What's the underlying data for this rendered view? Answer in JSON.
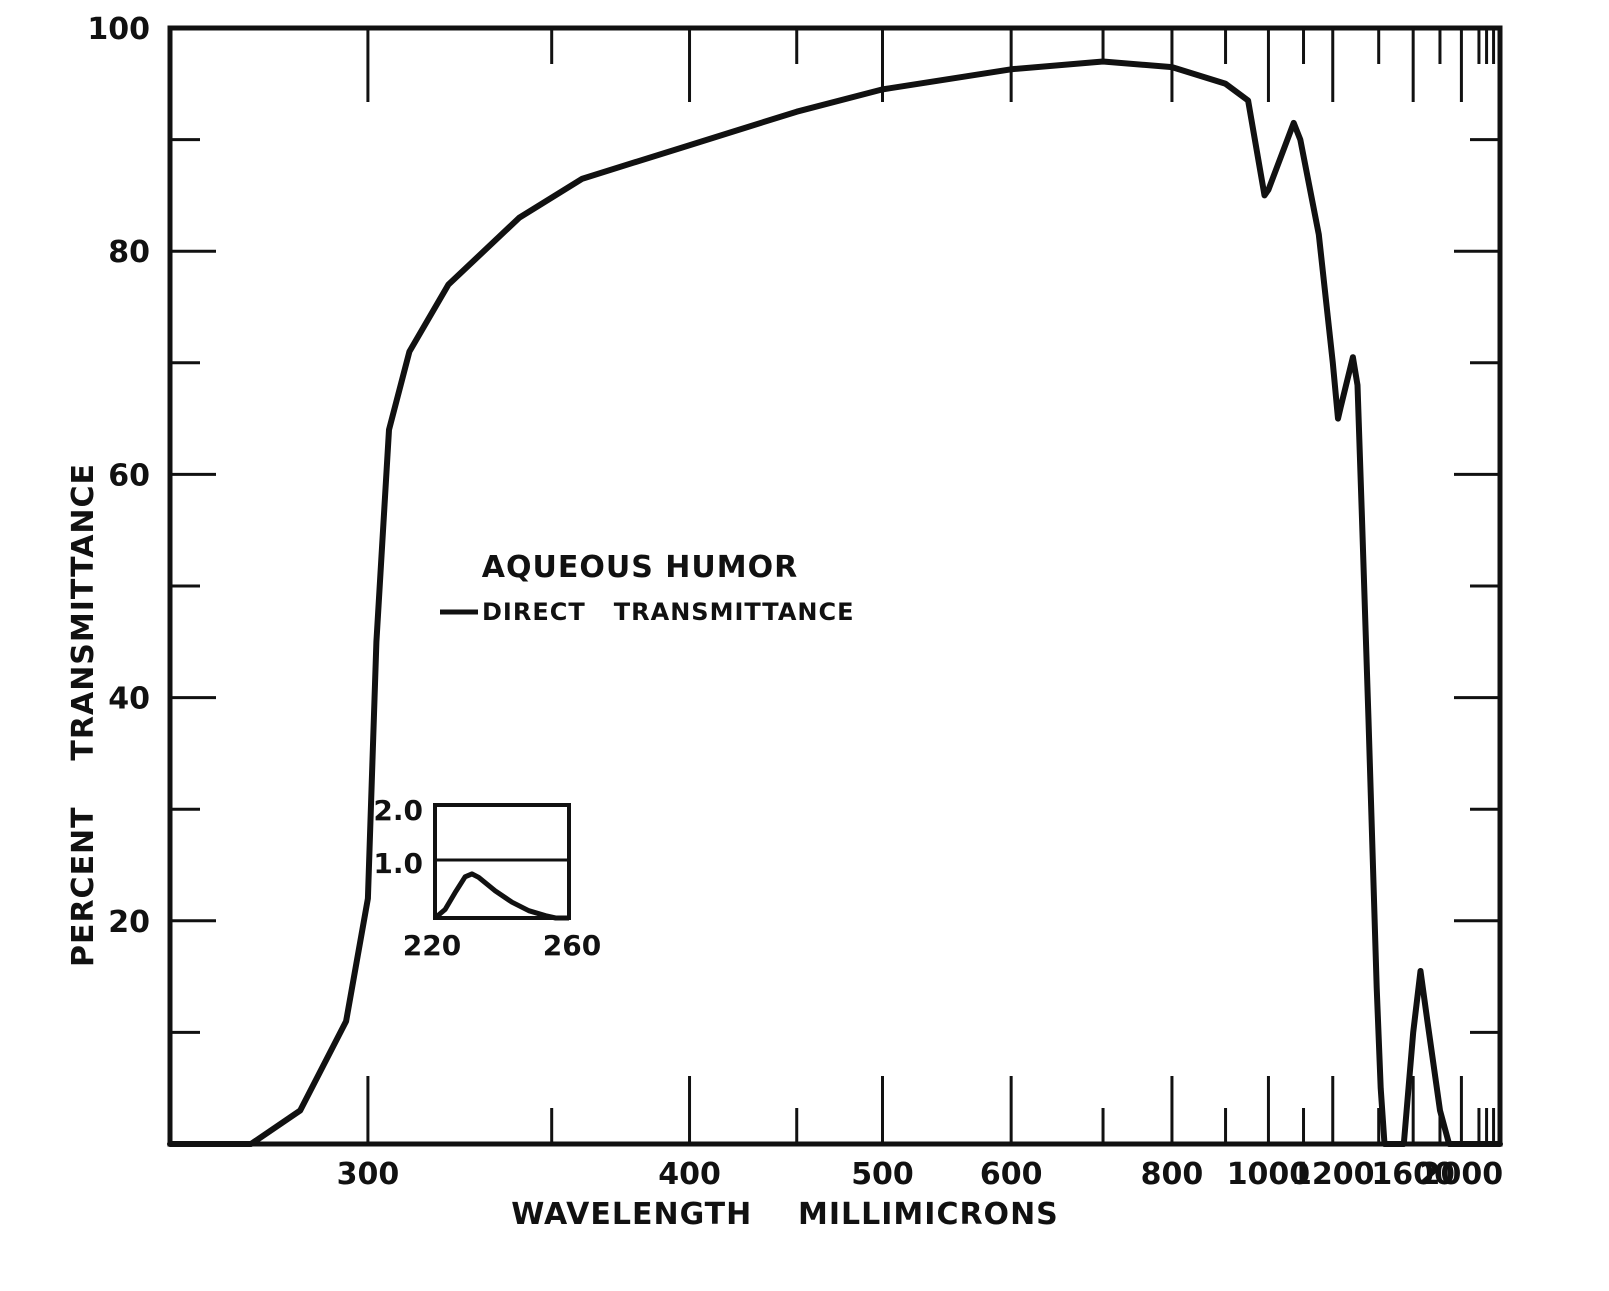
{
  "chart_data": {
    "type": "line",
    "title": "",
    "xlabel": "WAVELENGTH    MILLIMICRONS",
    "ylabel": "PERCENT    TRANSMITTANCE",
    "x_scale": "reciprocal",
    "xlim": [
      260,
      2500
    ],
    "ylim": [
      0,
      100
    ],
    "grid": false,
    "x_tick_labels": [
      "300",
      "400",
      "500",
      "600",
      "800",
      "1000",
      "1200",
      "1600",
      "2000"
    ],
    "y_tick_labels": [
      "20",
      "40",
      "60",
      "80",
      "100"
    ],
    "legend": {
      "title": "AQUEOUS HUMOR",
      "entries": [
        "DIRECT   TRANSMITTANCE"
      ],
      "position": "center-left"
    },
    "series": [
      {
        "name": "DIRECT   TRANSMITTANCE",
        "points": [
          [
            260,
            0
          ],
          [
            275,
            0
          ],
          [
            285,
            3
          ],
          [
            295,
            11
          ],
          [
            300,
            22
          ],
          [
            302,
            45
          ],
          [
            305,
            64
          ],
          [
            310,
            71
          ],
          [
            320,
            77
          ],
          [
            340,
            83
          ],
          [
            360,
            86.5
          ],
          [
            400,
            89.5
          ],
          [
            450,
            92.5
          ],
          [
            500,
            94.5
          ],
          [
            600,
            96.3
          ],
          [
            700,
            97
          ],
          [
            800,
            96.5
          ],
          [
            900,
            95
          ],
          [
            950,
            93.5
          ],
          [
            990,
            85
          ],
          [
            1000,
            85.5
          ],
          [
            1070,
            91.5
          ],
          [
            1090,
            90
          ],
          [
            1150,
            81.5
          ],
          [
            1200,
            70
          ],
          [
            1220,
            65
          ],
          [
            1230,
            66
          ],
          [
            1280,
            70.5
          ],
          [
            1300,
            68
          ],
          [
            1320,
            56
          ],
          [
            1350,
            38
          ],
          [
            1390,
            14
          ],
          [
            1410,
            5
          ],
          [
            1430,
            0
          ],
          [
            1540,
            0
          ],
          [
            1600,
            10
          ],
          [
            1650,
            15.5
          ],
          [
            1700,
            11
          ],
          [
            1800,
            3
          ],
          [
            1880,
            0
          ],
          [
            2500,
            0
          ]
        ]
      }
    ],
    "inset": {
      "x_tick_labels": [
        "220",
        "260"
      ],
      "y_tick_labels": [
        "2.0",
        "1.0"
      ],
      "xlim": [
        220,
        260
      ],
      "ylim": [
        0,
        2.0
      ],
      "points": [
        [
          220,
          0
        ],
        [
          223,
          0.15
        ],
        [
          226,
          0.45
        ],
        [
          229,
          0.73
        ],
        [
          231,
          0.78
        ],
        [
          233,
          0.72
        ],
        [
          238,
          0.48
        ],
        [
          243,
          0.28
        ],
        [
          248,
          0.13
        ],
        [
          253,
          0.04
        ],
        [
          256,
          0
        ],
        [
          260,
          0
        ]
      ]
    }
  }
}
